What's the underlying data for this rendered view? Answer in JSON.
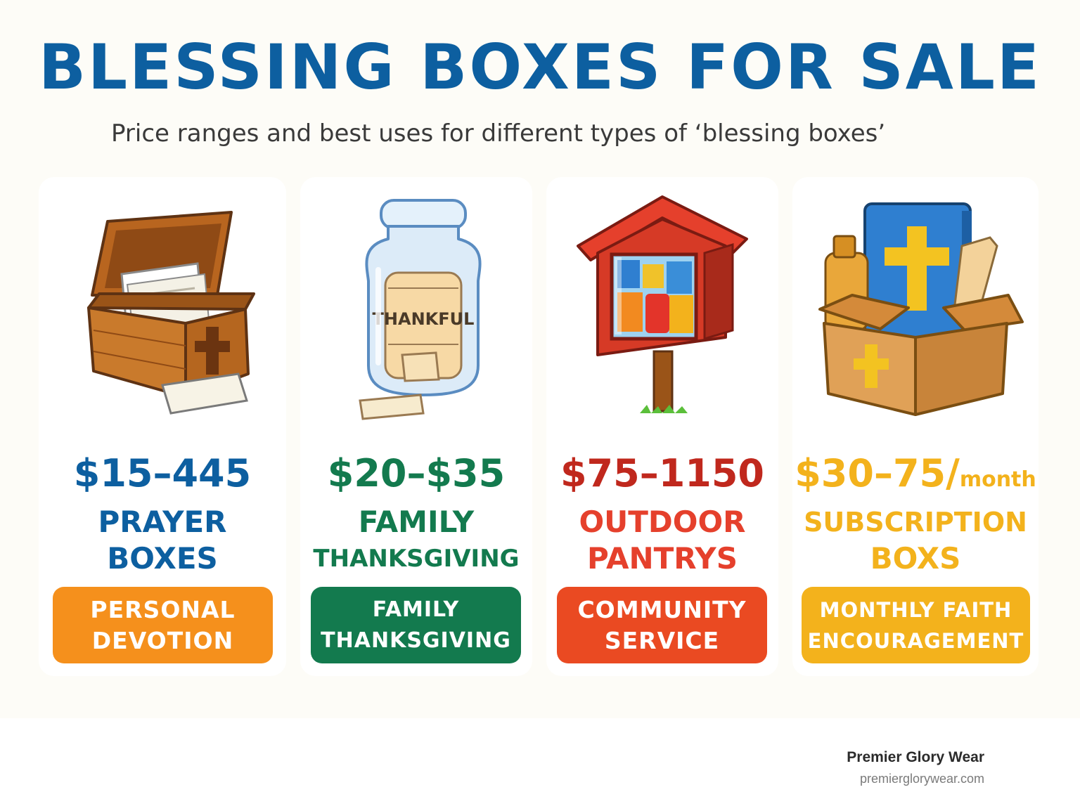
{
  "header": {
    "title": "BLESSING BOXES FOR SALE",
    "subtitle": "Price ranges and best uses for different types of ‘blessing boxes’"
  },
  "cards": [
    {
      "price": "$15–445",
      "price_unit": "",
      "type_line1": "PRAYER",
      "type_line2": "BOXES",
      "use_line1": "PERSONAL",
      "use_line2": "DEVOTION",
      "icon": "wooden-prayer-box-icon",
      "accent_color": "#0d5fa0",
      "badge_color": "#f5901c"
    },
    {
      "price": "$20–$35",
      "price_unit": "",
      "type_line1": "FAMILY",
      "type_line2": "THANKSGIVING",
      "use_line1": "FAMILY",
      "use_line2": "THANKSGIVING",
      "jar_label": "THANKFUL",
      "icon": "thankful-jar-icon",
      "accent_color": "#137a4e",
      "badge_color": "#137a4e"
    },
    {
      "price": "$75–1150",
      "price_unit": "",
      "type_line1": "OUTDOOR",
      "type_line2": "PANTRYS",
      "use_line1": "COMMUNITY",
      "use_line2": "SERVICE",
      "icon": "outdoor-pantry-icon",
      "accent_color": "#c0281d",
      "badge_color": "#ea4a22"
    },
    {
      "price": "$30–75/",
      "price_unit": "month",
      "type_line1": "SUBSCRIPTION",
      "type_line2": "BOXS",
      "use_line1": "MONTHLY FAITH",
      "use_line2": "ENCOURAGEMENT",
      "icon": "subscription-box-icon",
      "accent_color": "#f3b21c",
      "badge_color": "#f3b21c"
    }
  ],
  "footer": {
    "brand_name": "Premier Glory Wear",
    "brand_url": "premierglorywear.com"
  }
}
